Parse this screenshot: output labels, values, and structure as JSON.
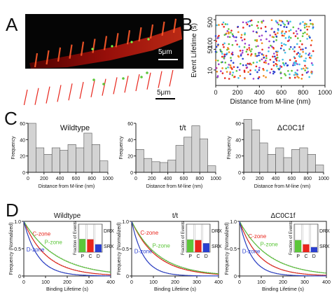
{
  "panels": {
    "A": {
      "letter": "A",
      "scale_top": "5μm",
      "scale_bottom": "5μm"
    },
    "B": {
      "letter": "B"
    },
    "C": {
      "letter": "C"
    },
    "D": {
      "letter": "D"
    }
  },
  "colors": {
    "bar_fill": "#d3d3d3",
    "c_zone": "#e8261c",
    "p_zone": "#5cc63a",
    "d_zone": "#2a3fcf",
    "scatter": [
      "#e8261c",
      "#f08a1c",
      "#2a3fcf",
      "#3fbfe6",
      "#5cc63a",
      "#9a3fcf"
    ]
  },
  "chart_data": [
    {
      "id": "B",
      "type": "scatter",
      "xlabel": "Distance from M-line (nm)",
      "ylabel": "Event Lifetime (s)",
      "xlim": [
        0,
        1000
      ],
      "ylim": [
        3,
        700
      ],
      "yscale": "log",
      "xticks": [
        "0",
        "200",
        "400",
        "600",
        "800",
        "1000"
      ],
      "yticks": [
        "10",
        "50",
        "100",
        "500"
      ],
      "note": "many colored points across 0-900 nm, lifetimes ~5-500 s"
    },
    {
      "id": "C1",
      "type": "bar",
      "title": "Wildtype",
      "xlabel": "Distance from M-line (nm)",
      "ylabel": "Frequency",
      "xlim": [
        0,
        1000
      ],
      "ylim": [
        0,
        60
      ],
      "xticks": [
        "0",
        "200",
        "400",
        "600",
        "800",
        "1000"
      ],
      "yticks": [
        "0",
        "20",
        "40",
        "60"
      ],
      "bin_width": 100,
      "bins": [
        0,
        100,
        200,
        300,
        400,
        500,
        600,
        700,
        800,
        900
      ],
      "values": [
        60,
        30,
        22,
        30,
        27,
        34,
        30,
        48,
        34,
        14
      ]
    },
    {
      "id": "C2",
      "type": "bar",
      "title": "t/t",
      "xlabel": "Distance from M-line (nm)",
      "ylabel": "Frequency",
      "xlim": [
        0,
        1000
      ],
      "ylim": [
        0,
        60
      ],
      "xticks": [
        "0",
        "200",
        "400",
        "600",
        "800",
        "1000"
      ],
      "yticks": [
        "0",
        "20",
        "40",
        "60"
      ],
      "bin_width": 100,
      "bins": [
        0,
        100,
        200,
        300,
        400,
        500,
        600,
        700,
        800,
        900
      ],
      "values": [
        28,
        17,
        13,
        12,
        15,
        33,
        43,
        57,
        41,
        8
      ]
    },
    {
      "id": "C3",
      "type": "bar",
      "title": "ΔC0C1f",
      "xlabel": "Distance from M-line (nm)",
      "ylabel": "Frequency",
      "xlim": [
        0,
        1000
      ],
      "ylim": [
        0,
        60
      ],
      "xticks": [
        "0",
        "200",
        "400",
        "600",
        "800",
        "1000"
      ],
      "yticks": [
        "0",
        "20",
        "40",
        "60"
      ],
      "bin_width": 100,
      "bins": [
        0,
        100,
        200,
        300,
        400,
        500,
        600,
        700,
        800,
        900
      ],
      "values": [
        65,
        52,
        36,
        22,
        30,
        18,
        28,
        30,
        22,
        9
      ]
    },
    {
      "id": "D1",
      "type": "line",
      "title": "Wildtype",
      "xlabel": "Binding Lifetime (s)",
      "ylabel": "Frequency (Normalized)",
      "xlim": [
        0,
        400
      ],
      "ylim": [
        0,
        1
      ],
      "xticks": [
        "0",
        "100",
        "200",
        "300",
        "400"
      ],
      "yticks": [
        "0",
        "0.5",
        "1.0"
      ],
      "series": [
        {
          "name": "C-zone",
          "tau": 105,
          "color_key": "c_zone"
        },
        {
          "name": "P-zone",
          "tau": 150,
          "color_key": "p_zone"
        },
        {
          "name": "D-zone",
          "tau": 65,
          "color_key": "d_zone"
        }
      ],
      "inset": {
        "ylabel": "Fraction of Events",
        "categories": [
          "P",
          "C",
          "D"
        ],
        "drx": [
          0.47,
          0.46,
          0.28
        ],
        "srx": [
          0.53,
          0.54,
          0.72
        ],
        "labels": {
          "drx": "DRX",
          "srx": "SRX"
        }
      }
    },
    {
      "id": "D2",
      "type": "line",
      "title": "t/t",
      "xlabel": "Binding Lifetime (s)",
      "ylabel": "Frequency (Normalized)",
      "xlim": [
        0,
        400
      ],
      "ylim": [
        0,
        1
      ],
      "xticks": [
        "0",
        "100",
        "200",
        "300",
        "400"
      ],
      "yticks": [
        "0",
        "0.5",
        "1.0"
      ],
      "series": [
        {
          "name": "C-zone",
          "tau": 115,
          "color_key": "c_zone"
        },
        {
          "name": "P-zone",
          "tau": 125,
          "color_key": "p_zone"
        },
        {
          "name": "D-zone",
          "tau": 55,
          "color_key": "d_zone"
        }
      ],
      "inset": {
        "ylabel": "Fraction of Events",
        "categories": [
          "P",
          "C",
          "D"
        ],
        "drx": [
          0.45,
          0.43,
          0.32
        ],
        "srx": [
          0.55,
          0.57,
          0.68
        ],
        "labels": {
          "drx": "DRX",
          "srx": "SRX"
        }
      }
    },
    {
      "id": "D3",
      "type": "line",
      "title": "ΔC0C1f",
      "xlabel": "Binding Lifetime (s)",
      "ylabel": "Frequency (Normalized)",
      "xlim": [
        0,
        400
      ],
      "ylim": [
        0,
        1
      ],
      "xticks": [
        "0",
        "100",
        "200",
        "300",
        "400"
      ],
      "yticks": [
        "0",
        "0.5",
        "1.0"
      ],
      "series": [
        {
          "name": "C-zone",
          "tau": 90,
          "color_key": "c_zone"
        },
        {
          "name": "P-zone",
          "tau": 135,
          "color_key": "p_zone"
        },
        {
          "name": "D-zone",
          "tau": 55,
          "color_key": "d_zone"
        }
      ],
      "inset": {
        "ylabel": "Fraction of Events",
        "categories": [
          "P",
          "C",
          "D"
        ],
        "drx": [
          0.43,
          0.28,
          0.18
        ],
        "srx": [
          0.57,
          0.72,
          0.82
        ],
        "labels": {
          "drx": "DRX",
          "srx": "SRX"
        }
      }
    }
  ]
}
